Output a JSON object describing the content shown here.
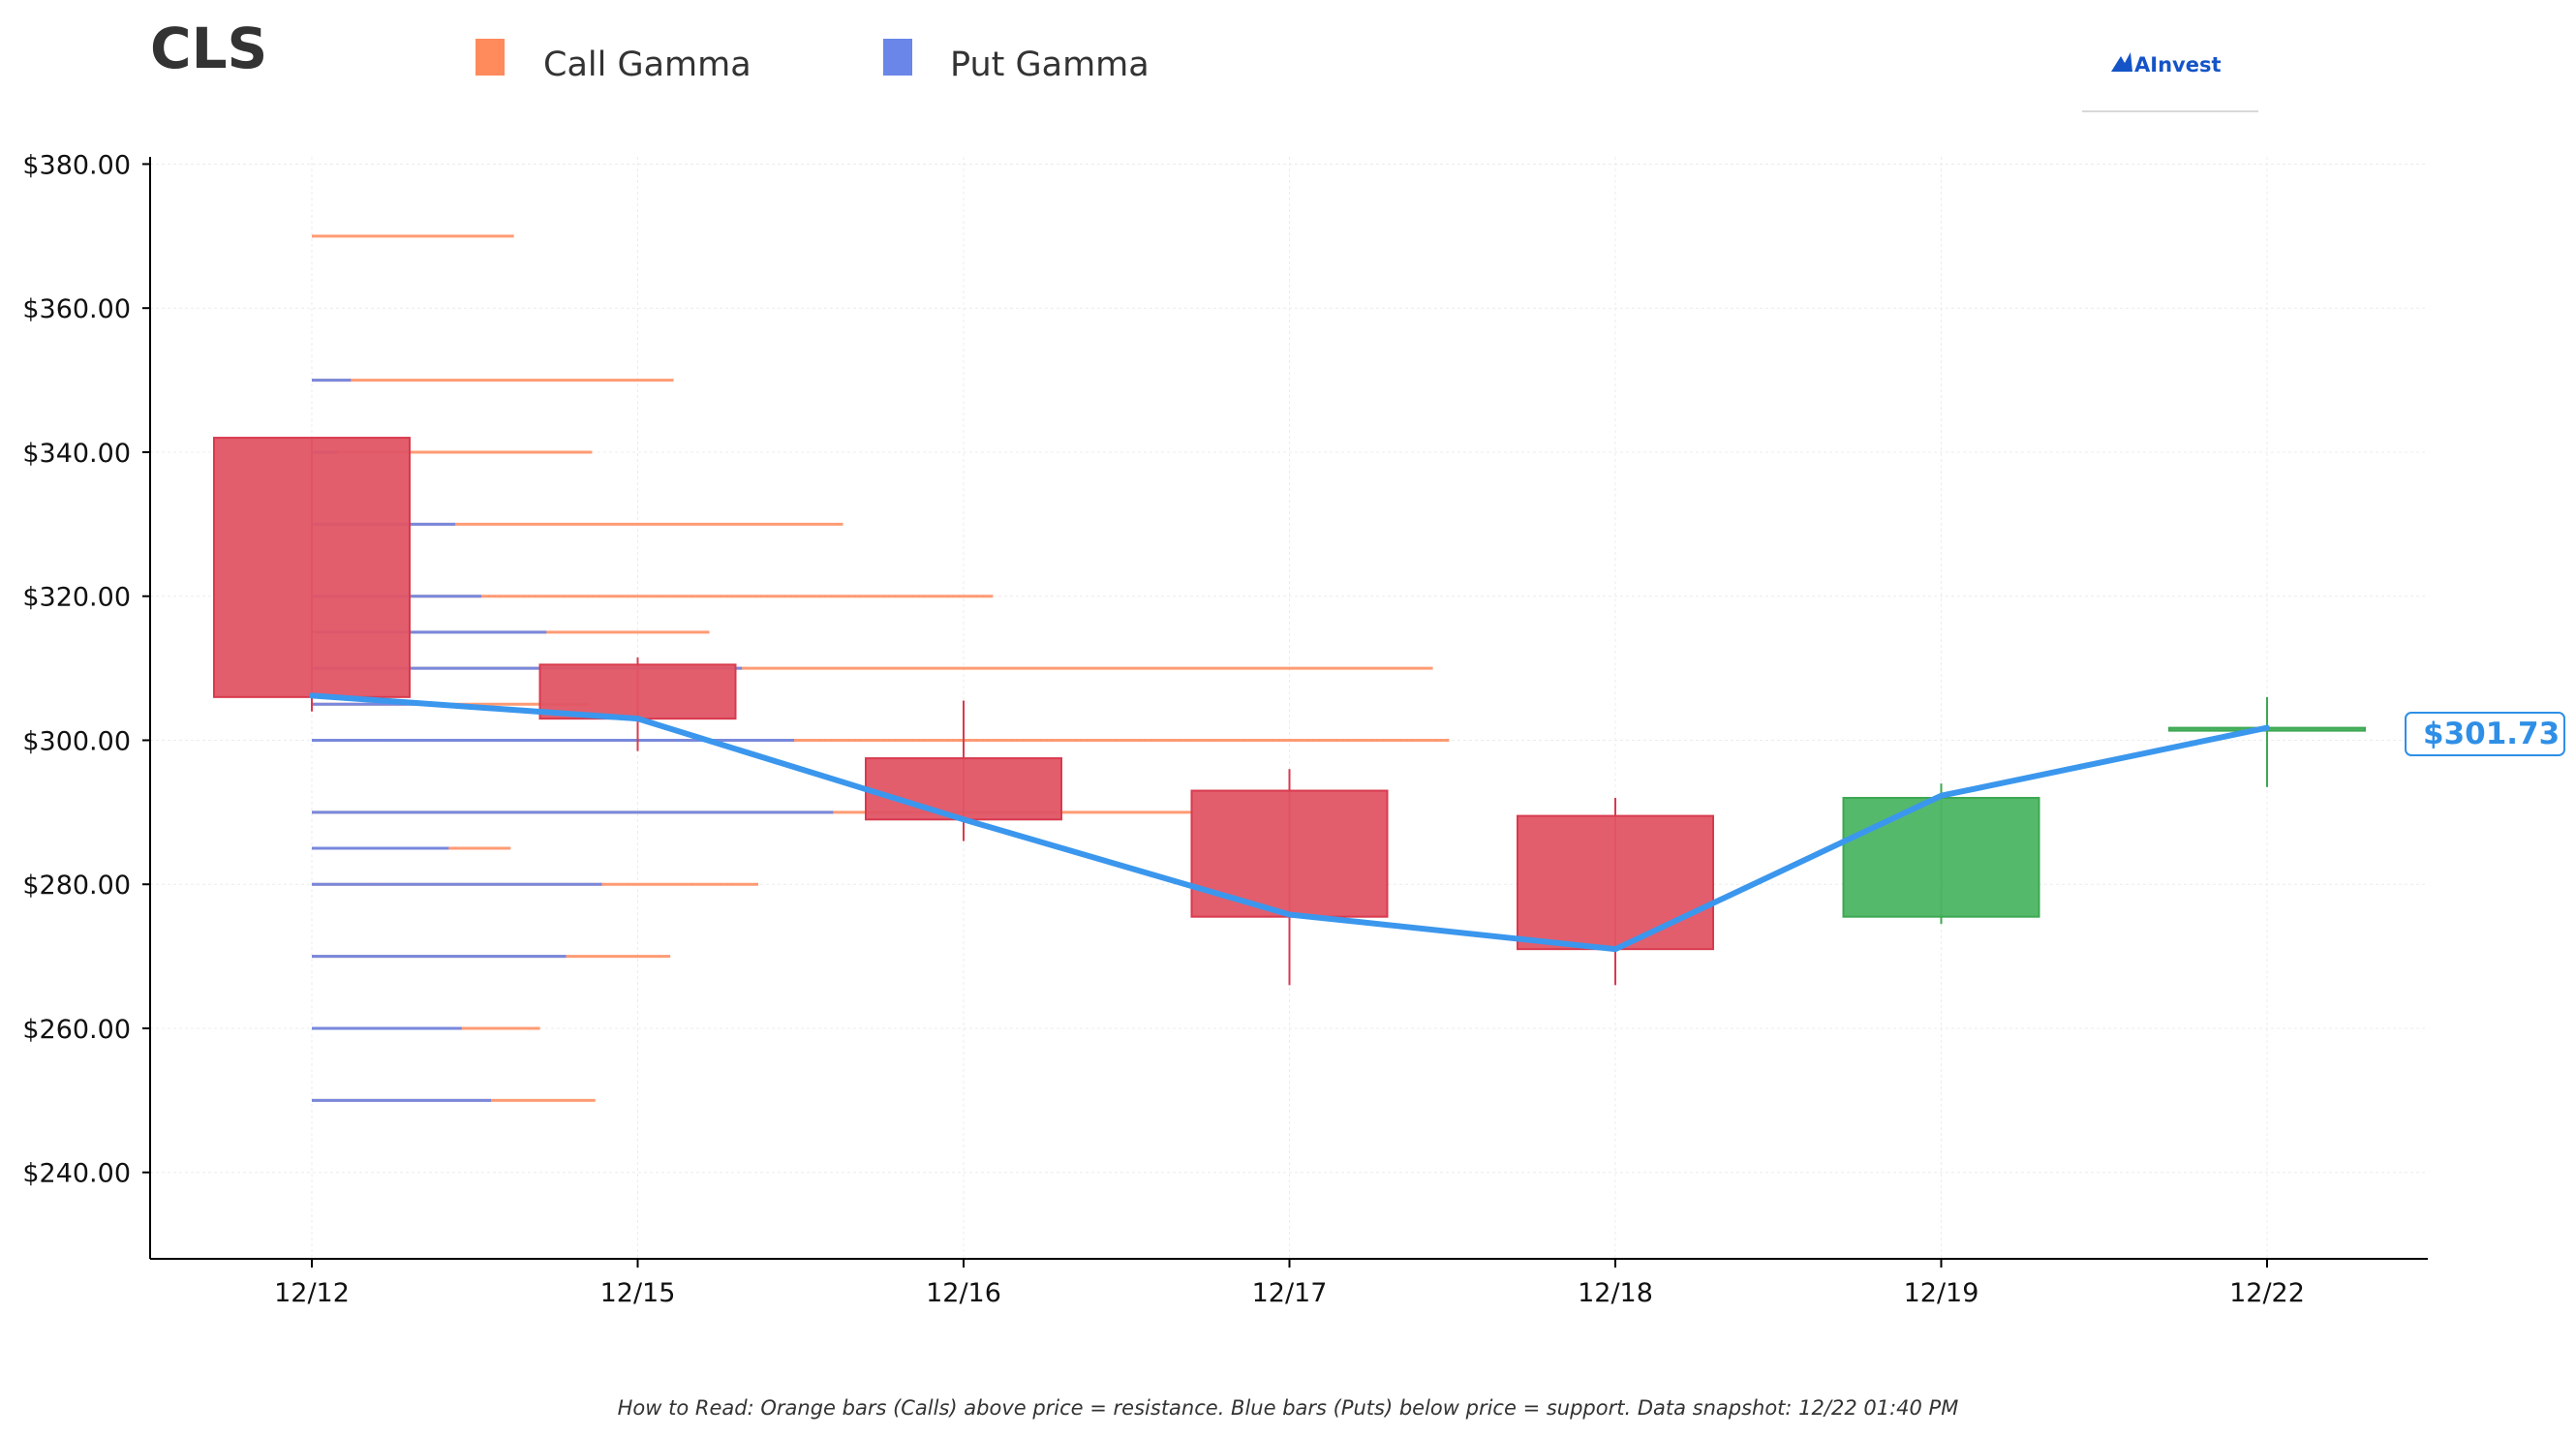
{
  "ticker": "CLS",
  "logo_text": "AInvest",
  "legend": [
    {
      "label": "Call Gamma",
      "color": "#ff8a5c"
    },
    {
      "label": "Put Gamma",
      "color": "#6a86e8"
    }
  ],
  "footnote": "How to Read: Orange bars (Calls) above price = resistance. Blue bars (Puts) below price = support. Data snapshot: 12/22 01:40 PM",
  "current_price_label": "$301.73",
  "chart_data": {
    "type": "candlestick",
    "title": "CLS",
    "ylim": [
      228,
      381
    ],
    "y_ticks": [
      240,
      260,
      280,
      300,
      320,
      340,
      360,
      380
    ],
    "y_tick_labels": [
      "$240.00",
      "$260.00",
      "$280.00",
      "$300.00",
      "$320.00",
      "$340.00",
      "$360.00",
      "$380.00"
    ],
    "categories": [
      "12/12",
      "12/15",
      "12/16",
      "12/17",
      "12/18",
      "12/19",
      "12/22"
    ],
    "grid": true,
    "colors": {
      "down": "#e05565",
      "down_edge": "#d93a4e",
      "up": "#4cb563",
      "up_edge": "#3da852",
      "price_line": "#3b97ed"
    },
    "candles": [
      {
        "date": "12/12",
        "open": 342,
        "high": 342,
        "low": 304,
        "close": 306
      },
      {
        "date": "12/15",
        "open": 310.5,
        "high": 311.5,
        "low": 298.5,
        "close": 303
      },
      {
        "date": "12/16",
        "open": 297.5,
        "high": 305.5,
        "low": 286,
        "close": 289
      },
      {
        "date": "12/17",
        "open": 293,
        "high": 296,
        "low": 266,
        "close": 275.5
      },
      {
        "date": "12/18",
        "open": 289.5,
        "high": 292,
        "low": 266,
        "close": 271
      },
      {
        "date": "12/19",
        "open": 275.5,
        "high": 294,
        "low": 274.5,
        "close": 292
      },
      {
        "date": "12/22",
        "open": 301.5,
        "high": 306,
        "low": 293.5,
        "close": 301.73
      }
    ],
    "price_line": [
      306.2,
      303,
      289,
      275.8,
      271,
      292.3,
      301.73
    ],
    "gamma_levels": [
      {
        "strike": 370,
        "put": 0,
        "call": 0.62
      },
      {
        "strike": 350,
        "put": 0.12,
        "call": 1.11
      },
      {
        "strike": 340,
        "put": 0.08,
        "call": 0.86
      },
      {
        "strike": 330,
        "put": 0.44,
        "call": 1.63
      },
      {
        "strike": 320,
        "put": 0.52,
        "call": 2.09
      },
      {
        "strike": 315,
        "put": 0.72,
        "call": 1.22
      },
      {
        "strike": 310,
        "put": 1.32,
        "call": 3.44
      },
      {
        "strike": 305,
        "put": 0.42,
        "call": 0.85
      },
      {
        "strike": 300,
        "put": 1.48,
        "call": 3.49
      },
      {
        "strike": 290,
        "put": 1.6,
        "call": 2.7
      },
      {
        "strike": 285,
        "put": 0.42,
        "call": 0.61
      },
      {
        "strike": 280,
        "put": 0.89,
        "call": 1.37
      },
      {
        "strike": 270,
        "put": 0.78,
        "call": 1.1
      },
      {
        "strike": 260,
        "put": 0.46,
        "call": 0.7
      },
      {
        "strike": 250,
        "put": 0.55,
        "call": 0.87
      }
    ]
  }
}
